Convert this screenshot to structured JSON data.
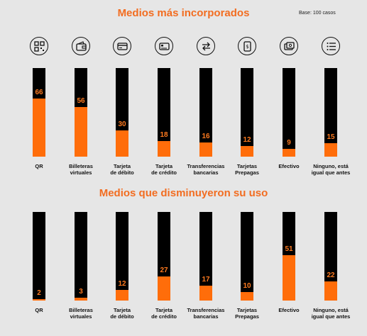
{
  "header": {
    "title_top": "Medios más incorporados",
    "title_bottom": "Medios que disminuyeron su uso",
    "base_note": "Base: 100 casos"
  },
  "icons": [
    "qr-code-icon",
    "wallet-icon",
    "debit-card-icon",
    "credit-card-icon",
    "transfer-arrows-icon",
    "prepaid-card-icon",
    "cash-icon",
    "list-icon"
  ],
  "colors": {
    "accent": "#ff6d0a",
    "title": "#f26d21",
    "bar_background": "#000000",
    "page_background": "#e6e6e6"
  },
  "chart_data": [
    {
      "type": "bar",
      "title": "Medios más incorporados",
      "categories": [
        "QR",
        "Billeteras\nvirtuales",
        "Tarjeta\nde débito",
        "Tarjeta\nde crédito",
        "Transferencias\nbancarias",
        "Tarjetas\nPrepagas",
        "Efectivo",
        "Ninguno, está\nigual que antes"
      ],
      "values": [
        66,
        56,
        30,
        18,
        16,
        12,
        9,
        15
      ],
      "ylim": [
        0,
        100
      ],
      "grid": false,
      "legend": "none"
    },
    {
      "type": "bar",
      "title": "Medios que disminuyeron su uso",
      "categories": [
        "QR",
        "Billeteras\nvirtuales",
        "Tarjeta\nde débito",
        "Tarjeta\nde crédito",
        "Transferencias\nbancarias",
        "Tarjetas\nPrepagas",
        "Efectivo",
        "Ninguno, está\nigual que antes"
      ],
      "values": [
        2,
        3,
        12,
        27,
        17,
        10,
        51,
        22
      ],
      "ylim": [
        0,
        100
      ],
      "grid": false,
      "legend": "none"
    }
  ]
}
